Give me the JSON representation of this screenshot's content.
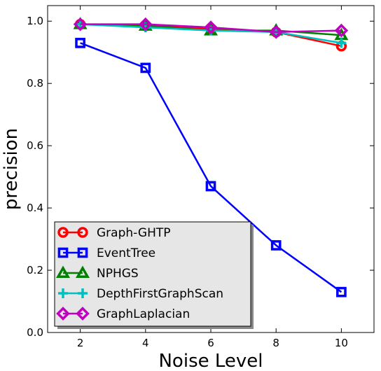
{
  "chart_data": {
    "type": "line",
    "title": "",
    "xlabel": "Noise Level",
    "ylabel": "precision",
    "x": [
      2,
      4,
      6,
      8,
      10
    ],
    "xlim": [
      1,
      11
    ],
    "ylim": [
      0.0,
      1.05
    ],
    "x_ticks": [
      "2",
      "4",
      "6",
      "8",
      "10"
    ],
    "y_ticks": [
      "0.0",
      "0.2",
      "0.4",
      "0.6",
      "0.8",
      "1.0"
    ],
    "grid": false,
    "legend_position": "lower-left",
    "series": [
      {
        "name": "Graph-GHTP",
        "color": "#ff0000",
        "marker": "circle",
        "values": [
          0.99,
          0.985,
          0.975,
          0.965,
          0.92
        ]
      },
      {
        "name": "EventTree",
        "color": "#0000ff",
        "marker": "square",
        "values": [
          0.93,
          0.85,
          0.47,
          0.28,
          0.13
        ]
      },
      {
        "name": "NPHGS",
        "color": "#008000",
        "marker": "triangle",
        "values": [
          0.99,
          0.985,
          0.97,
          0.97,
          0.955
        ]
      },
      {
        "name": "DepthFirstGraphScan",
        "color": "#00bfbf",
        "marker": "plus",
        "values": [
          0.99,
          0.98,
          0.97,
          0.965,
          0.93
        ]
      },
      {
        "name": "GraphLaplacian",
        "color": "#bf00bf",
        "marker": "diamond",
        "values": [
          0.99,
          0.99,
          0.98,
          0.965,
          0.97
        ]
      }
    ]
  }
}
